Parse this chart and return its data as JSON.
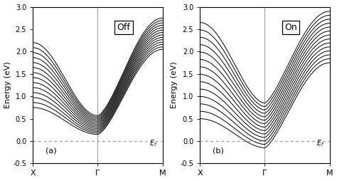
{
  "title_left": "Off",
  "title_right": "On",
  "label_left": "(a)",
  "label_right": "(b)",
  "ylabel": "Energy (eV)",
  "ef_label": "$E_f$",
  "ylim": [
    -0.5,
    3.0
  ],
  "yticks": [
    -0.5,
    0.0,
    0.5,
    1.0,
    1.5,
    2.0,
    2.5,
    3.0
  ],
  "xtick_labels": [
    "X",
    "Γ",
    "M"
  ],
  "num_bands_off": 14,
  "num_bands_on": 14,
  "line_color": "#000000",
  "line_width": 0.7,
  "bg_color": "#ffffff",
  "vline_color": "#999999",
  "ef_line_color": "#999999",
  "figsize": [
    4.74,
    2.54
  ],
  "dpi": 100
}
